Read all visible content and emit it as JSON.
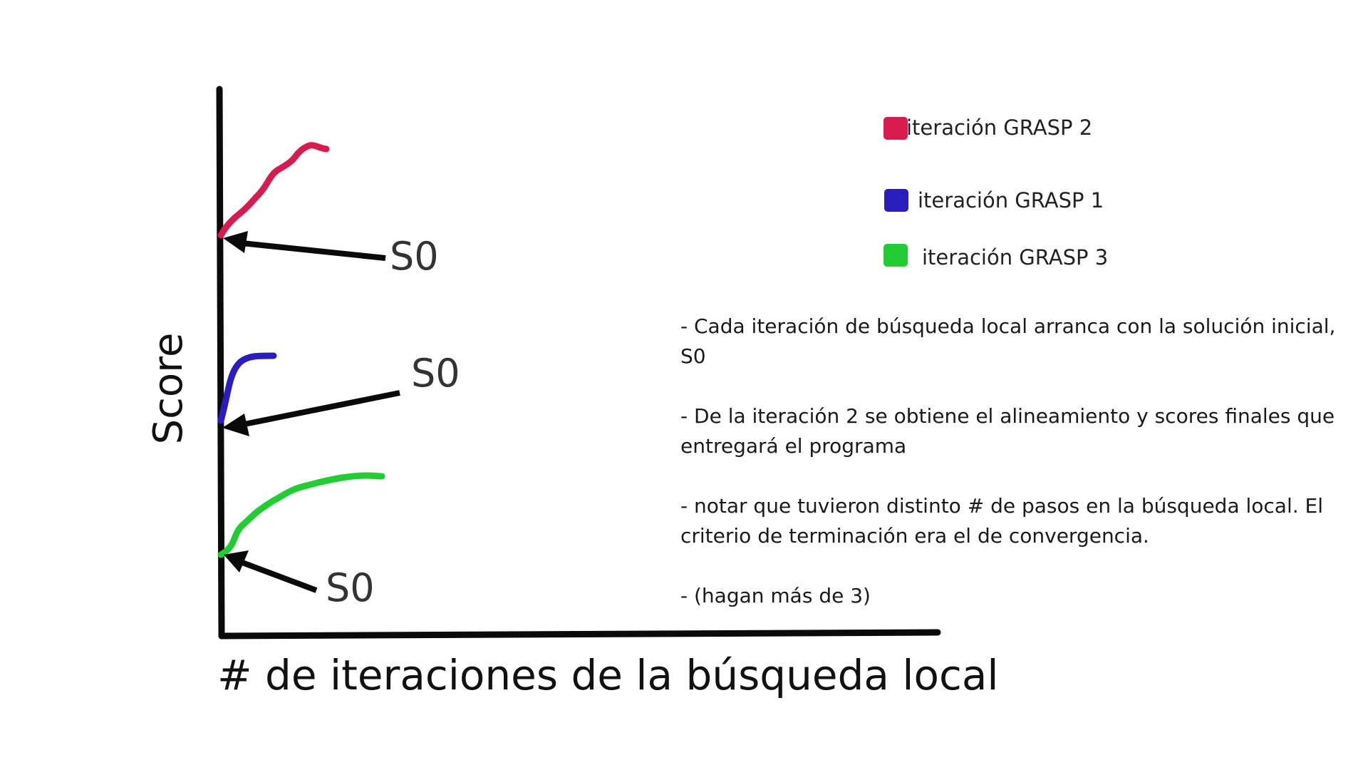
{
  "diagram": {
    "x_axis_title": "# de iteraciones de la búsqueda local",
    "y_axis_title": "Score",
    "start_label": "S0",
    "curves": [
      {
        "name": "iteración GRASP 2",
        "color": "#d81b4f"
      },
      {
        "name": "iteración GRASP 1",
        "color": "#2a1dbd"
      },
      {
        "name": "iteración GRASP 3",
        "color": "#22cc33"
      }
    ],
    "legend": [
      {
        "label": "iteración GRASP 2",
        "color": "#d81b4f"
      },
      {
        "label": "iteración GRASP 1",
        "color": "#2a1dbd"
      },
      {
        "label": "iteración GRASP 3",
        "color": "#22cc33"
      }
    ],
    "notes": [
      "- Cada iteración de búsqueda local arranca con la solución inicial, S0",
      "- De la iteración 2 se obtiene el alineamiento y scores finales que entregará el programa",
      "- notar que tuvieron distinto # de pasos en la búsqueda local. El criterio de terminación era el de convergencia.",
      "- (hagan más de 3)"
    ]
  }
}
